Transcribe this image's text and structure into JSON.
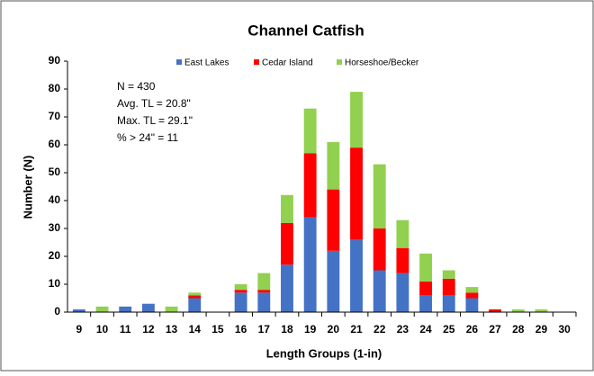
{
  "chart_data": {
    "type": "stacked_bar",
    "title": "Channel Catfish",
    "x_label": "Length Groups (1-in)",
    "y_label": "Number (N)",
    "categories": [
      "9",
      "10",
      "11",
      "12",
      "13",
      "14",
      "15",
      "16",
      "17",
      "18",
      "19",
      "20",
      "21",
      "22",
      "23",
      "24",
      "25",
      "26",
      "27",
      "28",
      "29",
      "30"
    ],
    "series": [
      {
        "name": "East Lakes",
        "color": "#4472c4",
        "values": [
          1,
          0,
          2,
          3,
          0,
          5,
          0,
          7,
          7,
          17,
          34,
          22,
          26,
          15,
          14,
          6,
          6,
          5,
          0,
          0,
          0,
          0
        ]
      },
      {
        "name": "Cedar Island",
        "color": "#ff0000",
        "values": [
          0,
          0,
          0,
          0,
          0,
          1,
          0,
          1,
          1,
          15,
          23,
          22,
          33,
          15,
          9,
          5,
          6,
          2,
          1,
          0,
          0,
          0
        ]
      },
      {
        "name": "Horseshoe/Becker",
        "color": "#92d050",
        "values": [
          0,
          2,
          0,
          0,
          2,
          1,
          0,
          2,
          6,
          10,
          16,
          17,
          20,
          23,
          10,
          10,
          3,
          2,
          0,
          1,
          1,
          0
        ]
      }
    ],
    "ylim": [
      0,
      90
    ],
    "yticks": [
      0,
      10,
      20,
      30,
      40,
      50,
      60,
      70,
      80,
      90
    ],
    "legend": "top",
    "annotations": [
      "N = 430",
      "Avg. TL = 20.8\"",
      "Max. TL = 29.1\"",
      "% > 24\" = 11"
    ]
  }
}
